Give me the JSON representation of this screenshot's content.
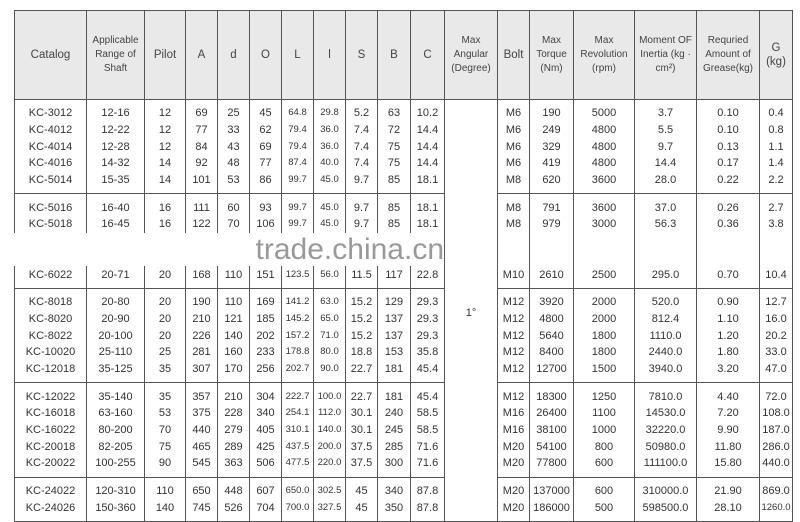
{
  "headers": {
    "catalog": "Catalog",
    "range": "Applicable Range of Shaft",
    "pilot": "Pilot",
    "A": "A",
    "d": "d",
    "O": "O",
    "L": "L",
    "l": "l",
    "S": "S",
    "B": "B",
    "C": "C",
    "angular": "Max Angular (Degree)",
    "bolt": "Bolt",
    "torque": "Max Torque (Nm)",
    "revolution": "Max Revolution (rpm)",
    "inertia": "Moment OF Inertia (kg · cm²)",
    "grease": "Requried Amount of Grease(kg)",
    "G": "G (kg)"
  },
  "max_angular": "1°",
  "watermark": "trade.china.cn",
  "groups": [
    [
      [
        "KC-3012",
        "12-16",
        "12",
        "69",
        "25",
        "45",
        "64.8",
        "29.8",
        "5.2",
        "63",
        "10.2",
        "M6",
        "190",
        "5000",
        "3.7",
        "0.10",
        "0.4"
      ],
      [
        "KC-4012",
        "12-22",
        "12",
        "77",
        "33",
        "62",
        "79.4",
        "36.0",
        "7.4",
        "72",
        "14.4",
        "M6",
        "249",
        "4800",
        "5.5",
        "0.10",
        "0.8"
      ],
      [
        "KC-4014",
        "12-28",
        "12",
        "84",
        "43",
        "69",
        "79.4",
        "36.0",
        "7.4",
        "75",
        "14.4",
        "M6",
        "329",
        "4800",
        "9.7",
        "0.13",
        "1.1"
      ],
      [
        "KC-4016",
        "14-32",
        "14",
        "92",
        "48",
        "77",
        "87.4",
        "40.0",
        "7.4",
        "75",
        "14.4",
        "M6",
        "419",
        "4800",
        "14.4",
        "0.17",
        "1.4"
      ],
      [
        "KC-5014",
        "15-35",
        "14",
        "101",
        "53",
        "86",
        "99.7",
        "45.0",
        "9.7",
        "85",
        "18.1",
        "M8",
        "620",
        "3600",
        "28.0",
        "0.22",
        "2.2"
      ]
    ],
    [
      [
        "KC-5016",
        "16-40",
        "16",
        "111",
        "60",
        "93",
        "99.7",
        "45.0",
        "9.7",
        "85",
        "18.1",
        "M8",
        "791",
        "3600",
        "37.0",
        "0.26",
        "2.7"
      ],
      [
        "KC-5018",
        "16-45",
        "16",
        "122",
        "70",
        "106",
        "99.7",
        "45.0",
        "9.7",
        "85",
        "18.1",
        "M8",
        "979",
        "3000",
        "56.3",
        "0.36",
        "3.8"
      ],
      [],
      [],
      [
        "KC-6022",
        "20-71",
        "20",
        "168",
        "110",
        "151",
        "123.5",
        "56.0",
        "11.5",
        "117",
        "22.8",
        "M10",
        "2610",
        "2500",
        "295.0",
        "0.70",
        "10.4"
      ]
    ],
    [
      [
        "KC-8018",
        "20-80",
        "20",
        "190",
        "110",
        "169",
        "141.2",
        "63.0",
        "15.2",
        "129",
        "29.3",
        "M12",
        "3920",
        "2000",
        "520.0",
        "0.90",
        "12.7"
      ],
      [
        "KC-8020",
        "20-90",
        "20",
        "210",
        "121",
        "185",
        "145.2",
        "65.0",
        "15.2",
        "137",
        "29.3",
        "M12",
        "4800",
        "2000",
        "812.4",
        "1.10",
        "16.0"
      ],
      [
        "KC-8022",
        "20-100",
        "20",
        "226",
        "140",
        "202",
        "157.2",
        "71.0",
        "15.2",
        "137",
        "29.3",
        "M12",
        "5640",
        "1800",
        "1110.0",
        "1.20",
        "20.2"
      ],
      [
        "KC-10020",
        "25-110",
        "25",
        "281",
        "160",
        "233",
        "178.8",
        "80.0",
        "18.8",
        "153",
        "35.8",
        "M12",
        "8400",
        "1800",
        "2440.0",
        "1.80",
        "33.0"
      ],
      [
        "KC-12018",
        "35-125",
        "35",
        "307",
        "170",
        "256",
        "202.7",
        "90.0",
        "22.7",
        "181",
        "45.4",
        "M12",
        "12700",
        "1500",
        "3940.0",
        "3.20",
        "47.0"
      ]
    ],
    [
      [
        "KC-12022",
        "35-140",
        "35",
        "357",
        "210",
        "304",
        "222.7",
        "100.0",
        "22.7",
        "181",
        "45.4",
        "M12",
        "18300",
        "1250",
        "7810.0",
        "4.40",
        "72.0"
      ],
      [
        "KC-16018",
        "63-160",
        "53",
        "375",
        "228",
        "340",
        "254.1",
        "112.0",
        "30.1",
        "240",
        "58.5",
        "M16",
        "26400",
        "1100",
        "14530.0",
        "7.20",
        "108.0"
      ],
      [
        "KC-16022",
        "80-200",
        "70",
        "440",
        "279",
        "405",
        "310.1",
        "140.0",
        "30.1",
        "245",
        "58.5",
        "M16",
        "38100",
        "1000",
        "32220.0",
        "9.90",
        "187.0"
      ],
      [
        "KC-20018",
        "82-205",
        "75",
        "465",
        "289",
        "425",
        "437.5",
        "200.0",
        "37.5",
        "285",
        "71.6",
        "M20",
        "54100",
        "800",
        "50980.0",
        "11.80",
        "286.0"
      ],
      [
        "KC-20022",
        "100-255",
        "90",
        "545",
        "363",
        "506",
        "477.5",
        "220.0",
        "37.5",
        "300",
        "71.6",
        "M20",
        "77800",
        "600",
        "111100.0",
        "15.80",
        "440.0"
      ]
    ],
    [
      [
        "KC-24022",
        "120-310",
        "110",
        "650",
        "448",
        "607",
        "650.0",
        "302.5",
        "45",
        "340",
        "87.8",
        "M20",
        "137000",
        "600",
        "310000.0",
        "21.90",
        "869.0"
      ],
      [
        "KC-24026",
        "150-360",
        "140",
        "745",
        "526",
        "704",
        "700.0",
        "327.5",
        "45",
        "350",
        "87.8",
        "M20",
        "186000",
        "500",
        "598500.0",
        "28.10",
        "1260.0"
      ]
    ]
  ]
}
